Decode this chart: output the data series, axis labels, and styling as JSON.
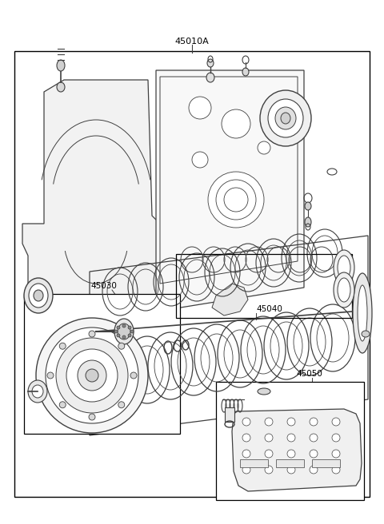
{
  "title": "45010A",
  "background_color": "#ffffff",
  "border_color": "#000000",
  "line_color": "#404040",
  "label_45010A": "45010A",
  "label_45040": "45040",
  "label_45030": "45030",
  "label_45050": "45050",
  "figsize": [
    4.8,
    6.56
  ],
  "dpi": 100
}
